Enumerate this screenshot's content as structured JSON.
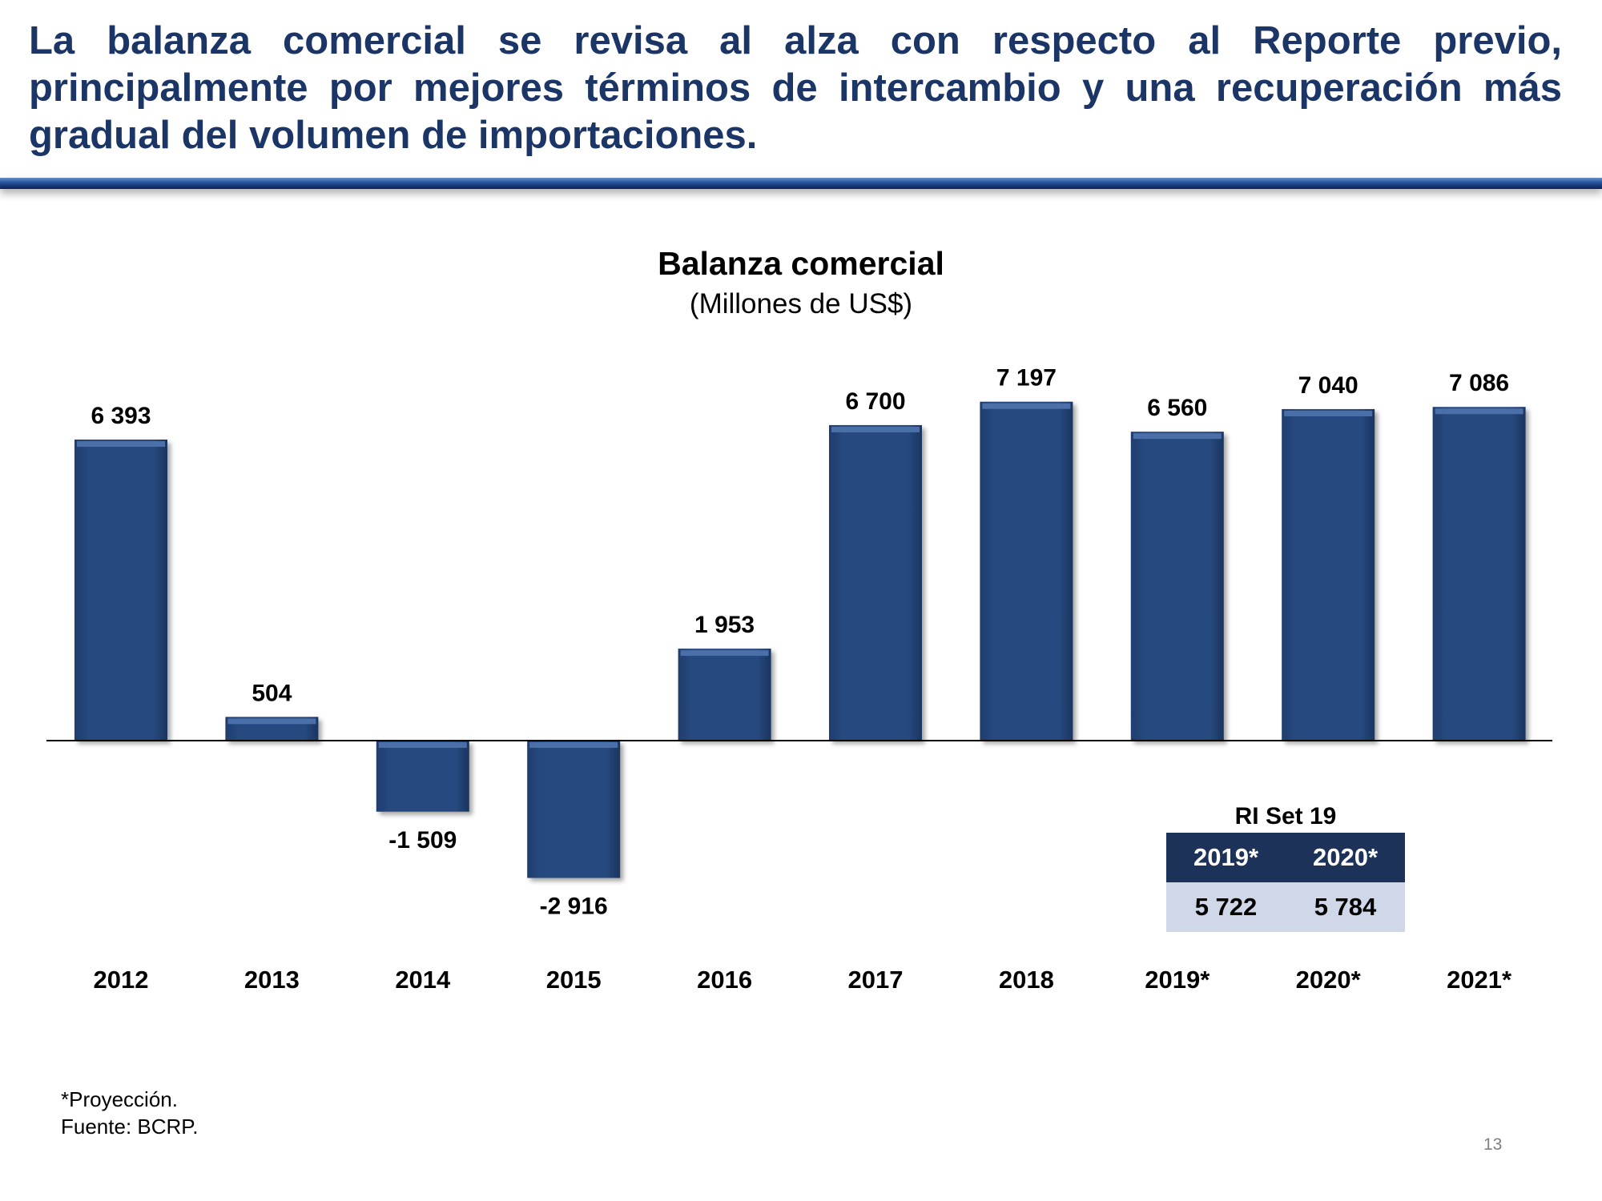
{
  "slide": {
    "headline": "La balanza comercial se revisa al alza con respecto al Reporte previo, principalmente por mejores términos de intercambio y una recuperación más gradual del volumen de importaciones.",
    "page_number": "13"
  },
  "colors": {
    "headline": "#1b3566",
    "bar": "#27497f",
    "bar_highlight": "#4b6fa8",
    "table_header": "#1c3259",
    "table_body": "#cfd7e8"
  },
  "chart_data": {
    "type": "bar",
    "title": "Balanza comercial",
    "subtitle": "(Millones de US$)",
    "categories": [
      "2012",
      "2013",
      "2014",
      "2015",
      "2016",
      "2017",
      "2018",
      "2019*",
      "2020*",
      "2021*"
    ],
    "values": [
      6393,
      504,
      -1509,
      -2916,
      1953,
      6700,
      7197,
      6560,
      7040,
      7086
    ],
    "value_labels": [
      "6 393",
      "504",
      "-1 509",
      "-2 916",
      "1 953",
      "6 700",
      "7 197",
      "6 560",
      "7 040",
      "7 086"
    ],
    "xlabel": "",
    "ylabel": "",
    "grid": false,
    "legend": "none"
  },
  "ri_table": {
    "title": "RI Set 19",
    "headers": [
      "2019*",
      "2020*"
    ],
    "values": [
      "5 722",
      "5 784"
    ]
  },
  "footnotes": {
    "projection": "*Proyección.",
    "source": "Fuente: BCRP."
  }
}
